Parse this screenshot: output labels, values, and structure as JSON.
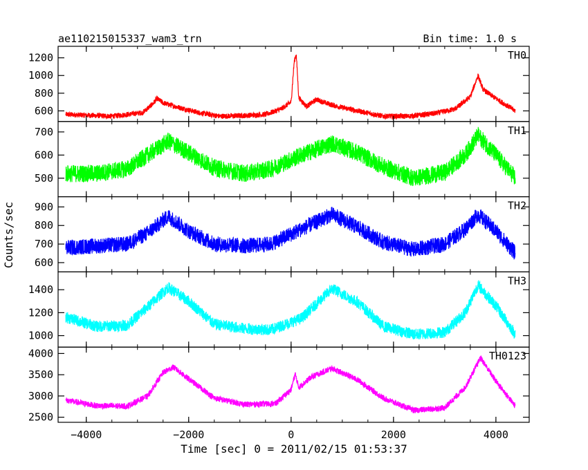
{
  "chart_data": {
    "type": "line",
    "title_left": "ae110215015337_wam3_trn",
    "title_right": "Bin time: 1.0 s",
    "xlabel": "Time [sec] 0 = 2011/02/15 01:53:37",
    "ylabel": "Counts/sec",
    "xlim": [
      -4550,
      4650
    ],
    "x_ticks": [
      -4000,
      -2000,
      0,
      2000,
      4000
    ],
    "x_tick_labels": [
      "−4000",
      "−2000",
      "0",
      "2000",
      "4000"
    ],
    "x_range": [
      -4400,
      4380
    ],
    "panels": [
      {
        "name": "TH0",
        "color": "#ff0000",
        "ylim": [
          480,
          1330
        ],
        "y_ticks": [
          600,
          800,
          1000,
          1200
        ],
        "baseline": [
          [
            -4400,
            560
          ],
          [
            -3500,
            540
          ],
          [
            -2900,
            580
          ],
          [
            -2700,
            680
          ],
          [
            -2620,
            740
          ],
          [
            -2500,
            690
          ],
          [
            -2200,
            640
          ],
          [
            -1800,
            580
          ],
          [
            -1400,
            540
          ],
          [
            -1000,
            545
          ],
          [
            -500,
            560
          ],
          [
            -200,
            620
          ],
          [
            0,
            700
          ],
          [
            60,
            1150
          ],
          [
            100,
            1250
          ],
          [
            150,
            750
          ],
          [
            300,
            650
          ],
          [
            500,
            730
          ],
          [
            620,
            700
          ],
          [
            900,
            650
          ],
          [
            1300,
            600
          ],
          [
            1800,
            540
          ],
          [
            2300,
            540
          ],
          [
            2800,
            570
          ],
          [
            3200,
            620
          ],
          [
            3500,
            760
          ],
          [
            3650,
            1000
          ],
          [
            3750,
            840
          ],
          [
            4000,
            740
          ],
          [
            4380,
            600
          ]
        ],
        "noise": 30
      },
      {
        "name": "TH1",
        "color": "#00ff00",
        "ylim": [
          420,
          745
        ],
        "y_ticks": [
          500,
          600,
          700
        ],
        "baseline": [
          [
            -4400,
            520
          ],
          [
            -3800,
            520
          ],
          [
            -3200,
            540
          ],
          [
            -2800,
            600
          ],
          [
            -2400,
            660
          ],
          [
            -2000,
            610
          ],
          [
            -1500,
            545
          ],
          [
            -900,
            520
          ],
          [
            -400,
            540
          ],
          [
            200,
            600
          ],
          [
            800,
            650
          ],
          [
            1300,
            610
          ],
          [
            1800,
            550
          ],
          [
            2400,
            500
          ],
          [
            3000,
            525
          ],
          [
            3400,
            600
          ],
          [
            3650,
            685
          ],
          [
            4000,
            600
          ],
          [
            4380,
            500
          ]
        ],
        "noise": 38
      },
      {
        "name": "TH2",
        "color": "#0000ff",
        "ylim": [
          550,
          955
        ],
        "y_ticks": [
          600,
          700,
          800,
          900
        ],
        "baseline": [
          [
            -4400,
            680
          ],
          [
            -3800,
            690
          ],
          [
            -3200,
            700
          ],
          [
            -2800,
            760
          ],
          [
            -2400,
            850
          ],
          [
            -2000,
            770
          ],
          [
            -1500,
            700
          ],
          [
            -900,
            690
          ],
          [
            -400,
            700
          ],
          [
            200,
            780
          ],
          [
            800,
            860
          ],
          [
            1300,
            790
          ],
          [
            1800,
            710
          ],
          [
            2400,
            670
          ],
          [
            3000,
            700
          ],
          [
            3400,
            780
          ],
          [
            3650,
            860
          ],
          [
            4000,
            770
          ],
          [
            4380,
            650
          ]
        ],
        "noise": 42
      },
      {
        "name": "TH3",
        "color": "#00ffff",
        "ylim": [
          900,
          1555
        ],
        "y_ticks": [
          1000,
          1200,
          1400
        ],
        "baseline": [
          [
            -4400,
            1160
          ],
          [
            -3800,
            1080
          ],
          [
            -3200,
            1090
          ],
          [
            -2800,
            1250
          ],
          [
            -2400,
            1420
          ],
          [
            -2000,
            1300
          ],
          [
            -1500,
            1100
          ],
          [
            -900,
            1060
          ],
          [
            -400,
            1050
          ],
          [
            200,
            1150
          ],
          [
            800,
            1410
          ],
          [
            1300,
            1290
          ],
          [
            1800,
            1080
          ],
          [
            2400,
            1010
          ],
          [
            3000,
            1030
          ],
          [
            3400,
            1200
          ],
          [
            3650,
            1440
          ],
          [
            4000,
            1260
          ],
          [
            4380,
            1010
          ]
        ],
        "noise": 50
      },
      {
        "name": "TH0123",
        "color": "#ff00ff",
        "ylim": [
          2380,
          4150
        ],
        "y_ticks": [
          2500,
          3000,
          3500,
          4000
        ],
        "baseline": [
          [
            -4400,
            2900
          ],
          [
            -3800,
            2770
          ],
          [
            -3200,
            2760
          ],
          [
            -2800,
            3000
          ],
          [
            -2500,
            3550
          ],
          [
            -2300,
            3680
          ],
          [
            -2000,
            3400
          ],
          [
            -1500,
            2950
          ],
          [
            -900,
            2800
          ],
          [
            -300,
            2820
          ],
          [
            0,
            3150
          ],
          [
            80,
            3520
          ],
          [
            150,
            3200
          ],
          [
            400,
            3450
          ],
          [
            800,
            3650
          ],
          [
            1300,
            3380
          ],
          [
            1800,
            2950
          ],
          [
            2400,
            2660
          ],
          [
            3000,
            2720
          ],
          [
            3400,
            3200
          ],
          [
            3700,
            3900
          ],
          [
            4000,
            3350
          ],
          [
            4380,
            2760
          ]
        ],
        "noise": 70
      }
    ]
  }
}
